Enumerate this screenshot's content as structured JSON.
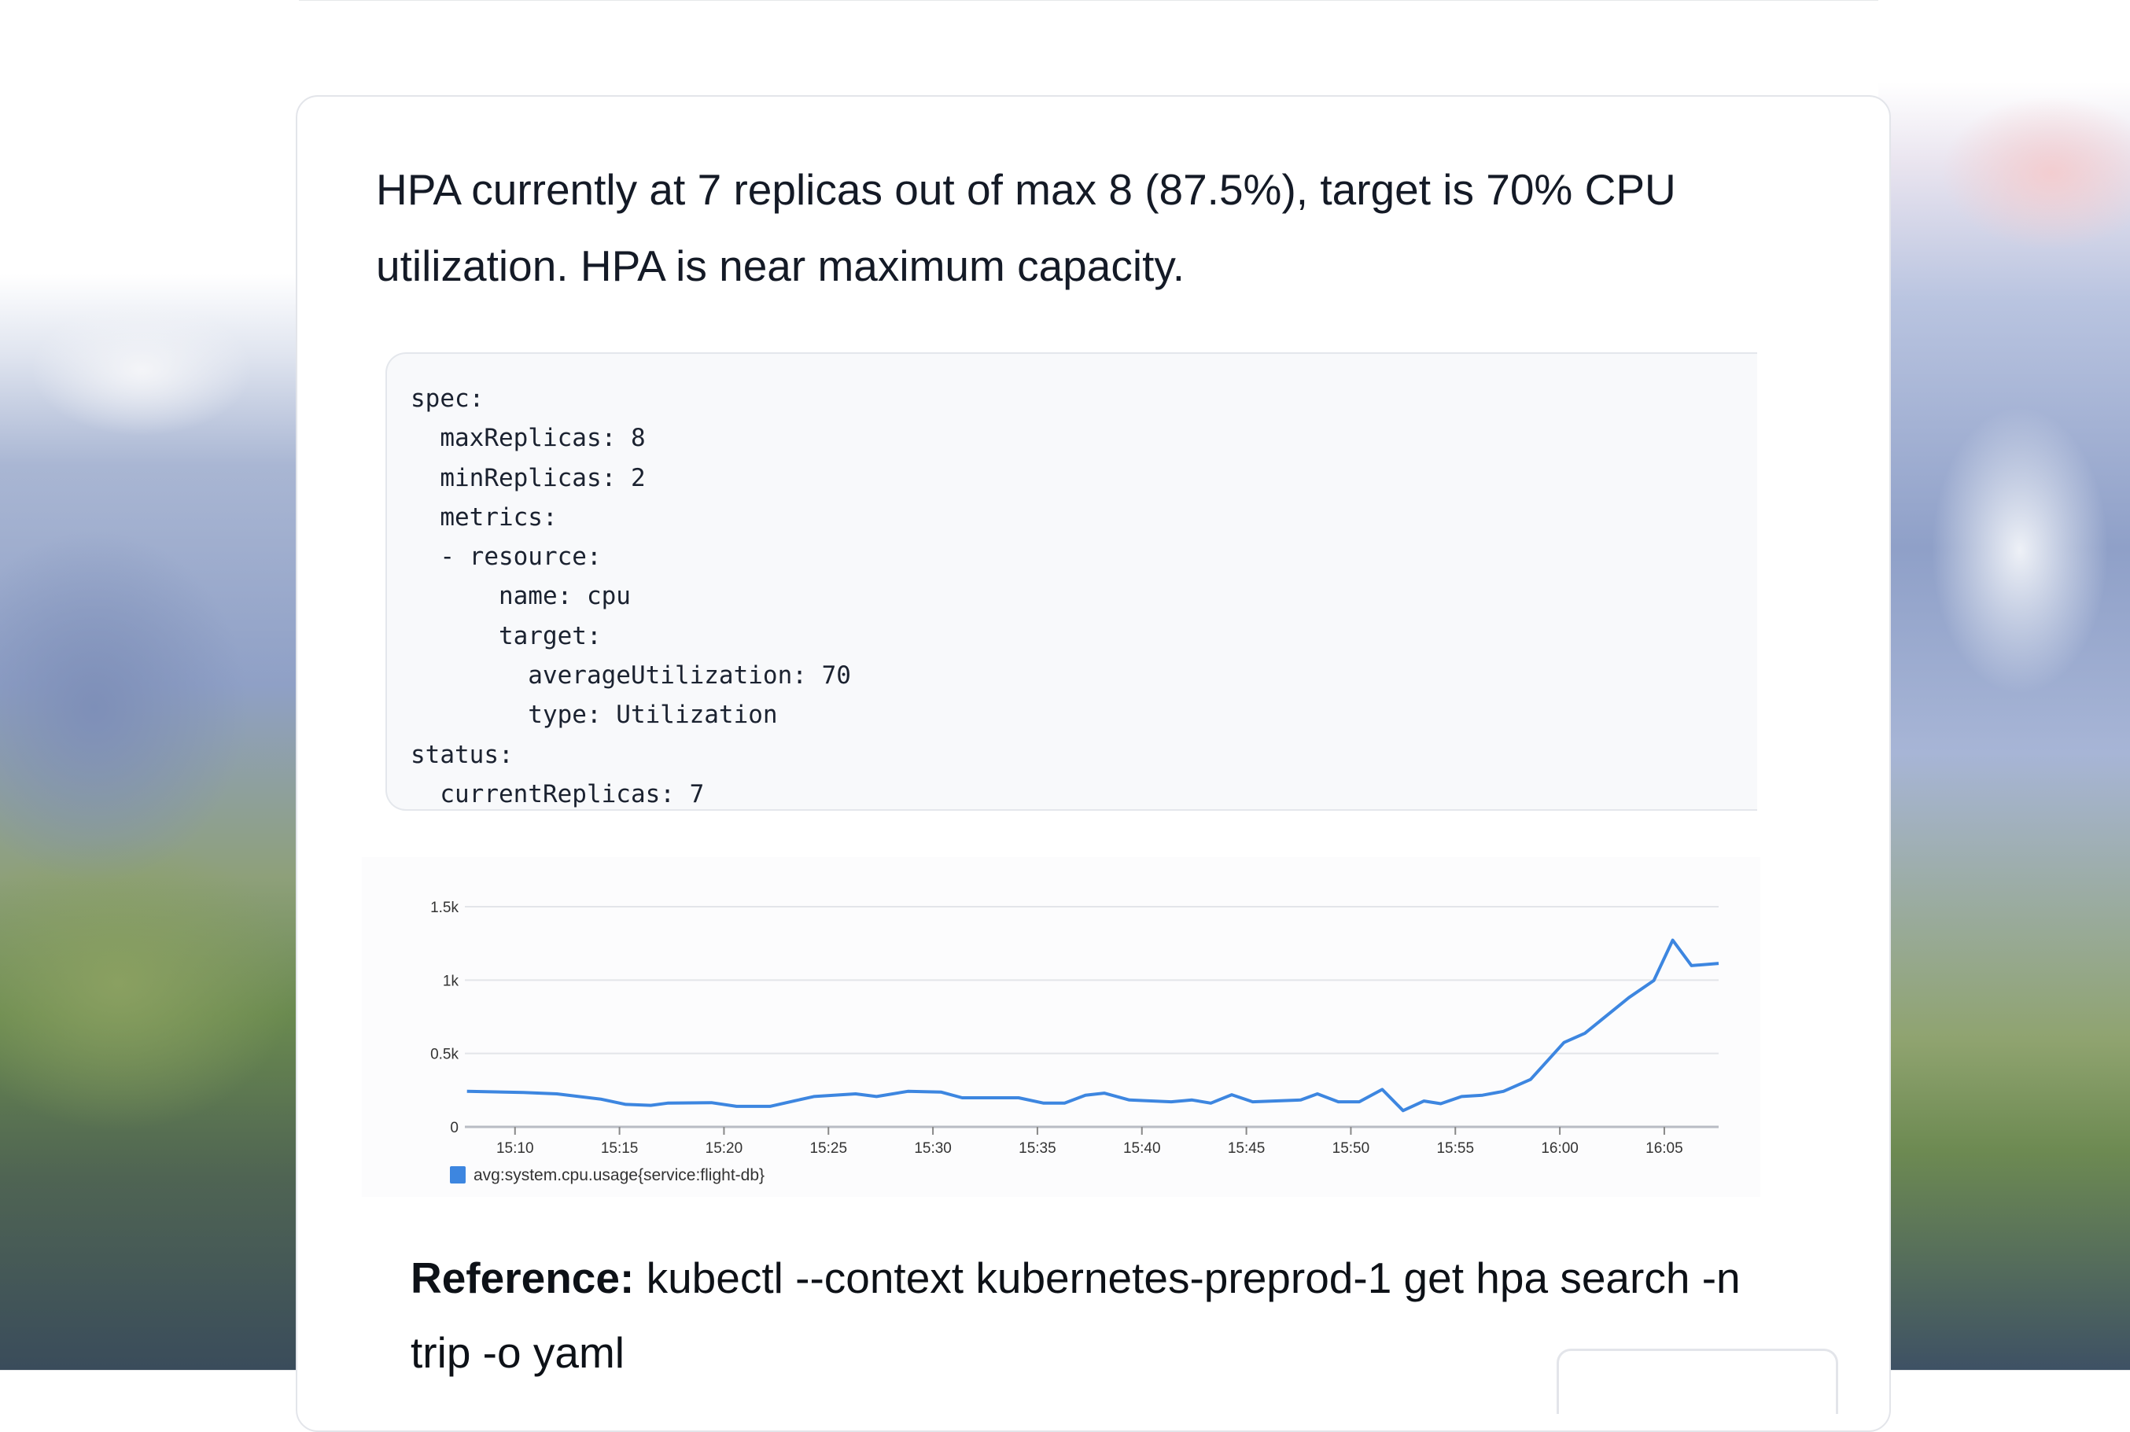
{
  "message": {
    "summary": "HPA currently at 7 replicas out of max 8 (87.5%), target is 70% CPU utilization. HPA is near maximum capacity.",
    "code": "spec:\n  maxReplicas: 8\n  minReplicas: 2\n  metrics:\n  - resource:\n      name: cpu\n      target:\n        averageUtilization: 70\n        type: Utilization\nstatus:\n  currentReplicas: 7",
    "reference_label": "Reference:",
    "reference_text": " kubectl --context kubernetes-preprod-1 get hpa search -n trip -o yaml"
  },
  "chart_data": {
    "type": "line",
    "title": "",
    "xlabel": "",
    "ylabel": "",
    "ylim": [
      0,
      1500
    ],
    "yticks": [
      "0",
      "0.5k",
      "1k",
      "1.5k"
    ],
    "ytick_values": [
      0,
      500,
      1000,
      1500
    ],
    "xticks": [
      "15:10",
      "15:15",
      "15:20",
      "15:25",
      "15:30",
      "15:35",
      "15:40",
      "15:45",
      "15:50",
      "15:55",
      "16:00",
      "16:05"
    ],
    "xlim": [
      "15:07:36",
      "16:07:36"
    ],
    "grid": true,
    "legend_position": "bottom-left",
    "series": [
      {
        "name": "avg:system.cpu.usage{service:flight-db}",
        "color": "#3d86e0",
        "x": [
          "15:07:42",
          "15:10:24",
          "15:12:00",
          "15:14:06",
          "15:15:18",
          "15:16:30",
          "15:17:18",
          "15:19:24",
          "15:20:36",
          "15:22:12",
          "15:24:18",
          "15:26:18",
          "15:27:18",
          "15:28:48",
          "15:30:24",
          "15:31:24",
          "15:34:06",
          "15:35:18",
          "15:36:18",
          "15:37:18",
          "15:38:12",
          "15:39:24",
          "15:41:24",
          "15:42:24",
          "15:43:18",
          "15:44:18",
          "15:45:18",
          "15:47:36",
          "15:48:24",
          "15:49:24",
          "15:50:24",
          "15:51:30",
          "15:52:30",
          "15:53:30",
          "15:54:18",
          "15:55:18",
          "15:56:18",
          "15:57:18",
          "15:58:36",
          "16:00:12",
          "16:01:12",
          "16:03:18",
          "16:04:30",
          "16:05:24",
          "16:06:18",
          "16:07:36"
        ],
        "y": [
          242,
          234,
          225,
          189,
          153,
          147,
          162,
          165,
          140,
          140,
          207,
          225,
          207,
          242,
          237,
          198,
          198,
          162,
          162,
          216,
          230,
          183,
          171,
          183,
          162,
          219,
          171,
          183,
          225,
          171,
          171,
          255,
          111,
          176,
          158,
          207,
          216,
          242,
          323,
          575,
          638,
          880,
          997,
          1272,
          1099,
          1114
        ]
      }
    ]
  }
}
